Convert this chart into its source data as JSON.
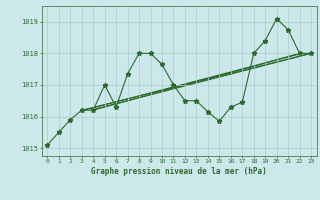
{
  "title": "Graphe pression niveau de la mer (hPa)",
  "bg_color": "#cce8ea",
  "grid_color": "#aacccc",
  "line_color": "#2d6a2d",
  "xlim": [
    -0.5,
    23.5
  ],
  "ylim": [
    1014.75,
    1019.5
  ],
  "yticks": [
    1015,
    1016,
    1017,
    1018,
    1019
  ],
  "xticks": [
    0,
    1,
    2,
    3,
    4,
    5,
    6,
    7,
    8,
    9,
    10,
    11,
    12,
    13,
    14,
    15,
    16,
    17,
    18,
    19,
    20,
    21,
    22,
    23
  ],
  "series": [
    [
      0,
      1015.1
    ],
    [
      1,
      1015.5
    ],
    [
      2,
      1015.9
    ],
    [
      3,
      1016.2
    ],
    [
      4,
      1016.2
    ],
    [
      5,
      1017.0
    ],
    [
      6,
      1016.3
    ],
    [
      7,
      1017.35
    ],
    [
      8,
      1018.0
    ],
    [
      9,
      1018.0
    ],
    [
      10,
      1017.65
    ],
    [
      11,
      1017.0
    ],
    [
      12,
      1016.5
    ],
    [
      13,
      1016.5
    ],
    [
      14,
      1016.15
    ],
    [
      15,
      1015.85
    ],
    [
      16,
      1016.3
    ],
    [
      17,
      1016.45
    ],
    [
      18,
      1018.0
    ],
    [
      19,
      1018.4
    ],
    [
      20,
      1019.1
    ],
    [
      21,
      1018.75
    ],
    [
      22,
      1018.0
    ],
    [
      23,
      1018.0
    ]
  ],
  "trend_lines": [
    [
      [
        3,
        23
      ],
      [
        1016.2,
        1018.0
      ]
    ],
    [
      [
        4,
        22
      ],
      [
        1016.2,
        1018.0
      ]
    ],
    [
      [
        4,
        23
      ],
      [
        1016.22,
        1018.0
      ]
    ],
    [
      [
        3,
        22
      ],
      [
        1016.18,
        1017.98
      ]
    ]
  ]
}
